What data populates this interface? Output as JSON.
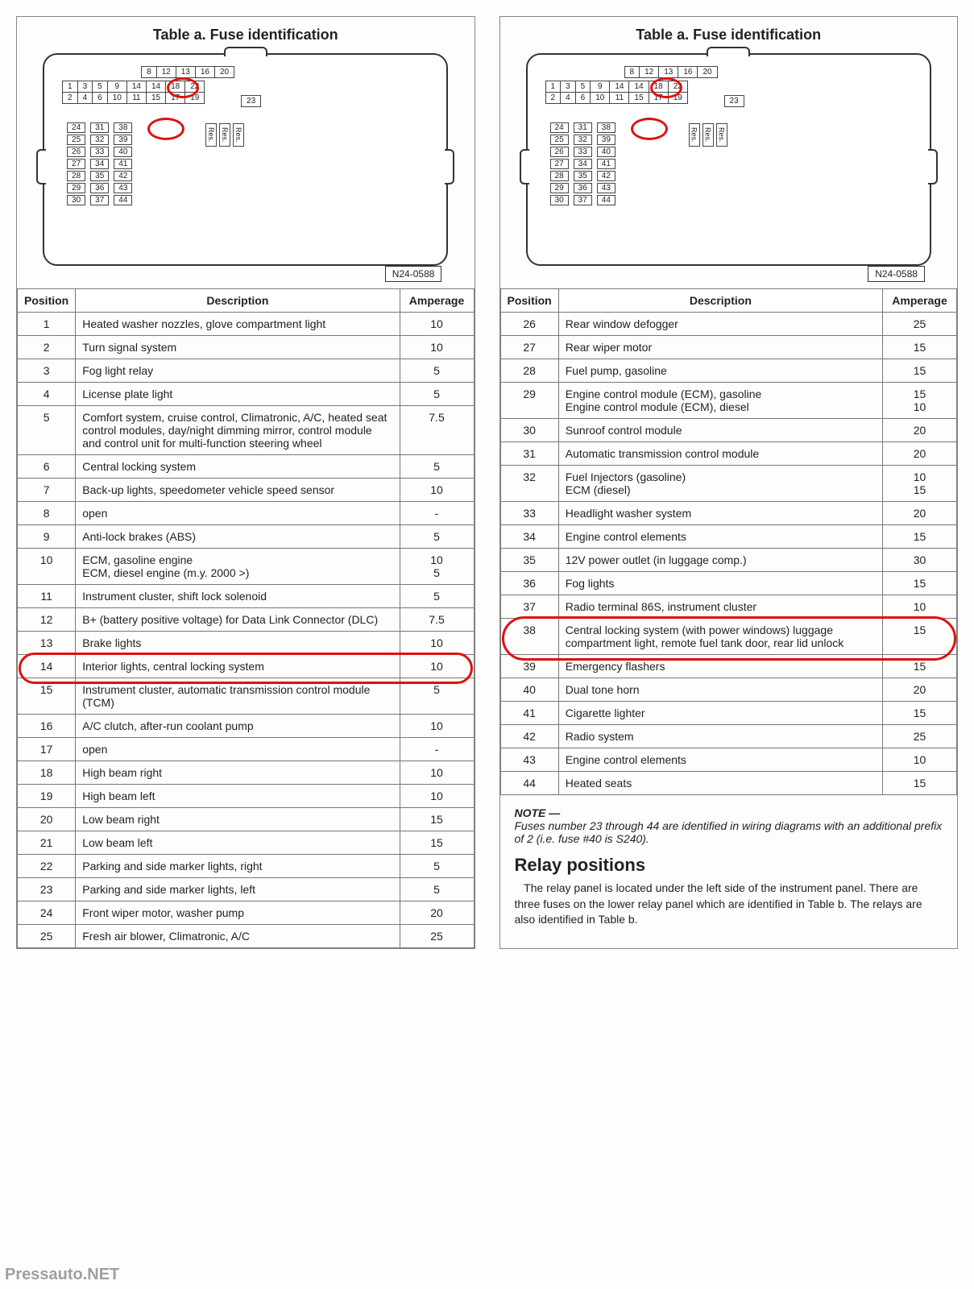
{
  "title": "Table a.  Fuse identification",
  "part_number": "N24-0588",
  "headers": {
    "pos": "Position",
    "desc": "Description",
    "amp": "Amperage"
  },
  "upper_grid": {
    "row1": [
      "8",
      "12",
      "13",
      "16",
      "20"
    ],
    "row2a": [
      "1",
      "3",
      "5",
      "9"
    ],
    "row2b": [
      "14",
      "14",
      "18",
      "22"
    ],
    "row3a": [
      "2",
      "4",
      "6",
      "10"
    ],
    "row3b": [
      "11",
      "15",
      "17",
      "19"
    ],
    "row3c": [
      "23"
    ]
  },
  "circles_diag": {
    "c14": "14",
    "c38": "38"
  },
  "slots": [
    [
      "24",
      "31",
      "38"
    ],
    [
      "25",
      "32",
      "39"
    ],
    [
      "26",
      "33",
      "40"
    ],
    [
      "27",
      "34",
      "41"
    ],
    [
      "28",
      "35",
      "42"
    ],
    [
      "29",
      "36",
      "43"
    ],
    [
      "30",
      "37",
      "44"
    ]
  ],
  "res_label": "Res.",
  "left_rows": [
    {
      "p": "1",
      "d": "Heated washer nozzles, glove compartment light",
      "a": "10"
    },
    {
      "p": "2",
      "d": "Turn signal system",
      "a": "10"
    },
    {
      "p": "3",
      "d": "Fog light relay",
      "a": "5"
    },
    {
      "p": "4",
      "d": "License plate light",
      "a": "5"
    },
    {
      "p": "5",
      "d": "Comfort system, cruise control, Climatronic, A/C, heated seat control modules, day/night dimming mirror, control module and control unit for multi-function steering wheel",
      "a": "7.5"
    },
    {
      "p": "6",
      "d": "Central locking system",
      "a": "5"
    },
    {
      "p": "7",
      "d": "Back-up lights, speedometer vehicle speed sensor",
      "a": "10"
    },
    {
      "p": "8",
      "d": "open",
      "a": "-"
    },
    {
      "p": "9",
      "d": "Anti-lock brakes (ABS)",
      "a": "5"
    },
    {
      "p": "10",
      "d": "ECM, gasoline engine\nECM, diesel engine (m.y. 2000 >)",
      "a": "10\n5"
    },
    {
      "p": "11",
      "d": "Instrument cluster, shift lock solenoid",
      "a": "5"
    },
    {
      "p": "12",
      "d": "B+ (battery positive voltage) for Data Link Connector (DLC)",
      "a": "7.5"
    },
    {
      "p": "13",
      "d": "Brake lights",
      "a": "10"
    },
    {
      "p": "14",
      "d": "Interior lights, central locking system",
      "a": "10",
      "hl": true
    },
    {
      "p": "15",
      "d": "Instrument cluster, automatic transmission control module (TCM)",
      "a": "5"
    },
    {
      "p": "16",
      "d": "A/C clutch, after-run coolant pump",
      "a": "10"
    },
    {
      "p": "17",
      "d": "open",
      "a": "-"
    },
    {
      "p": "18",
      "d": "High beam right",
      "a": "10"
    },
    {
      "p": "19",
      "d": "High beam left",
      "a": "10"
    },
    {
      "p": "20",
      "d": "Low beam right",
      "a": "15"
    },
    {
      "p": "21",
      "d": "Low beam left",
      "a": "15"
    },
    {
      "p": "22",
      "d": "Parking and side marker lights, right",
      "a": "5"
    },
    {
      "p": "23",
      "d": "Parking and side marker lights, left",
      "a": "5"
    },
    {
      "p": "24",
      "d": "Front wiper motor, washer pump",
      "a": "20"
    },
    {
      "p": "25",
      "d": "Fresh air blower, Climatronic, A/C",
      "a": "25"
    }
  ],
  "right_rows": [
    {
      "p": "26",
      "d": "Rear window defogger",
      "a": "25"
    },
    {
      "p": "27",
      "d": "Rear wiper motor",
      "a": "15"
    },
    {
      "p": "28",
      "d": "Fuel pump, gasoline",
      "a": "15"
    },
    {
      "p": "29",
      "d": "Engine control module (ECM), gasoline\nEngine control module (ECM), diesel",
      "a": "15\n10"
    },
    {
      "p": "30",
      "d": "Sunroof control module",
      "a": "20"
    },
    {
      "p": "31",
      "d": "Automatic transmission control module",
      "a": "20"
    },
    {
      "p": "32",
      "d": "Fuel Injectors (gasoline)\nECM (diesel)",
      "a": "10\n15"
    },
    {
      "p": "33",
      "d": "Headlight washer system",
      "a": "20"
    },
    {
      "p": "34",
      "d": "Engine control elements",
      "a": "15"
    },
    {
      "p": "35",
      "d": "12V power outlet (in luggage comp.)",
      "a": "30"
    },
    {
      "p": "36",
      "d": "Fog lights",
      "a": "15"
    },
    {
      "p": "37",
      "d": "Radio terminal 86S, instrument cluster",
      "a": "10"
    },
    {
      "p": "38",
      "d": "Central locking system (with power windows) luggage compartment light, remote fuel tank door, rear lid unlock",
      "a": "15",
      "hl": true
    },
    {
      "p": "39",
      "d": "Emergency flashers",
      "a": "15"
    },
    {
      "p": "40",
      "d": "Dual tone horn",
      "a": "20"
    },
    {
      "p": "41",
      "d": "Cigarette lighter",
      "a": "15"
    },
    {
      "p": "42",
      "d": "Radio system",
      "a": "25"
    },
    {
      "p": "43",
      "d": "Engine control elements",
      "a": "10"
    },
    {
      "p": "44",
      "d": "Heated seats",
      "a": "15"
    }
  ],
  "note": {
    "label": "NOTE —",
    "text": "Fuses number 23 through 44 are identified in wiring diagrams with an additional prefix of 2 (i.e. fuse #40 is S240)."
  },
  "relay": {
    "heading": "Relay positions",
    "text": "The relay panel is located under the left side of the instrument panel. There are three fuses on the lower relay panel which are identified in Table b. The relays are also identified in Table b."
  },
  "watermark": "Pressauto.NET",
  "colors": {
    "annotation": "#d11",
    "border": "#777",
    "text": "#222"
  }
}
